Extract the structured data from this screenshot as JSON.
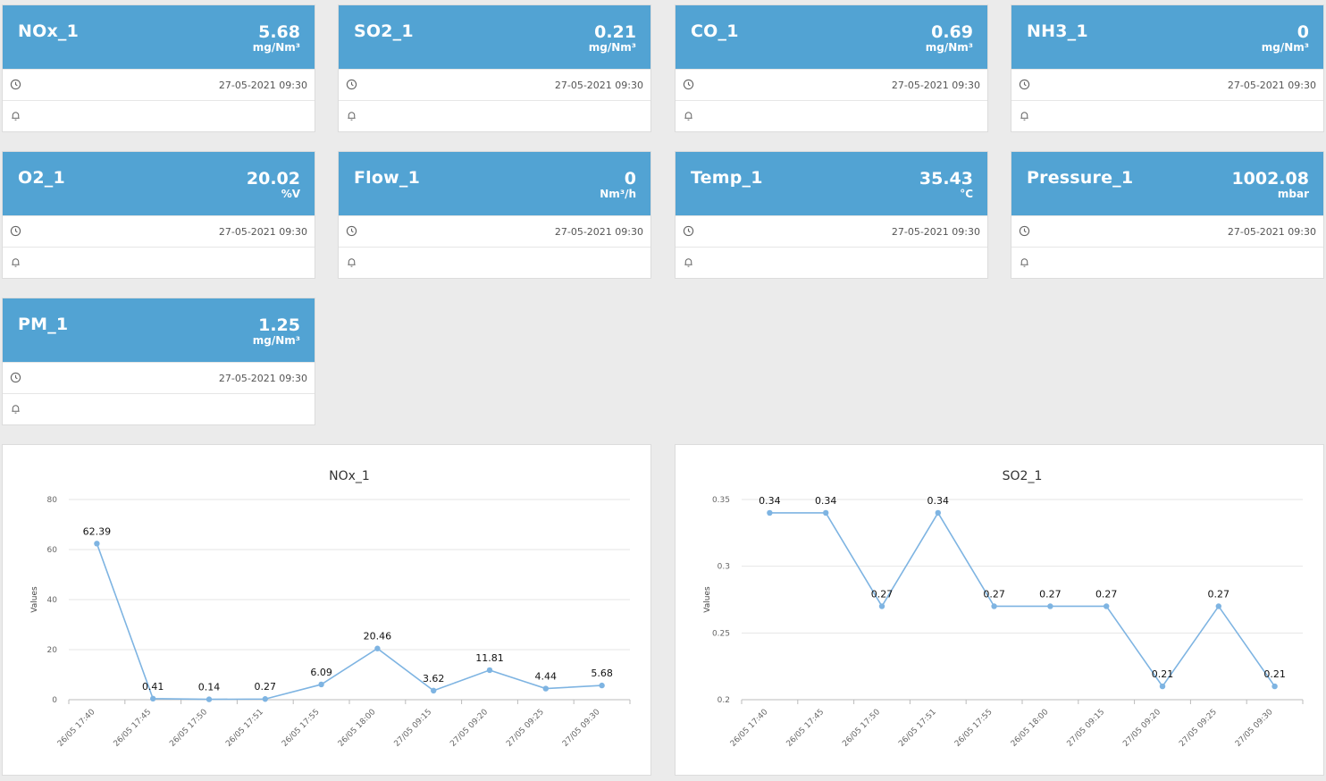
{
  "cards": [
    {
      "name": "NOx_1",
      "value": "5.68",
      "unit": "mg/Nm³",
      "timestamp": "27-05-2021 09:30"
    },
    {
      "name": "SO2_1",
      "value": "0.21",
      "unit": "mg/Nm³",
      "timestamp": "27-05-2021 09:30"
    },
    {
      "name": "CO_1",
      "value": "0.69",
      "unit": "mg/Nm³",
      "timestamp": "27-05-2021 09:30"
    },
    {
      "name": "NH3_1",
      "value": "0",
      "unit": "mg/Nm³",
      "timestamp": "27-05-2021 09:30"
    },
    {
      "name": "O2_1",
      "value": "20.02",
      "unit": "%V",
      "timestamp": "27-05-2021 09:30"
    },
    {
      "name": "Flow_1",
      "value": "0",
      "unit": "Nm³/h",
      "timestamp": "27-05-2021 09:30"
    },
    {
      "name": "Temp_1",
      "value": "35.43",
      "unit": "°C",
      "timestamp": "27-05-2021 09:30"
    },
    {
      "name": "Pressure_1",
      "value": "1002.08",
      "unit": "mbar",
      "timestamp": "27-05-2021 09:30"
    },
    {
      "name": "PM_1",
      "value": "1.25",
      "unit": "mg/Nm³",
      "timestamp": "27-05-2021 09:30"
    }
  ],
  "icons": {
    "time": "clock-icon",
    "alarm": "bell-icon"
  },
  "colors": {
    "accent": "#52a3d3",
    "line": "#7eb4e2",
    "background": "#ebebeb"
  },
  "chart_data": [
    {
      "type": "line",
      "title": "NOx_1",
      "ylabel": "Values",
      "ylim": [
        0,
        80
      ],
      "yticks": [
        "0",
        "20",
        "40",
        "60",
        "80"
      ],
      "categories": [
        "26/05 17:40",
        "26/05 17:45",
        "26/05 17:50",
        "26/05 17:51",
        "26/05 17:55",
        "26/05 18:00",
        "27/05 09:15",
        "27/05 09:20",
        "27/05 09:25",
        "27/05 09:30"
      ],
      "values": [
        62.39,
        0.41,
        0.14,
        0.27,
        6.09,
        20.46,
        3.62,
        11.81,
        4.44,
        5.68
      ],
      "labels": [
        "62.39",
        "0.41",
        "0.14",
        "0.27",
        "6.09",
        "20.46",
        "3.62",
        "11.81",
        "4.44",
        "5.68"
      ],
      "grid": true
    },
    {
      "type": "line",
      "title": "SO2_1",
      "ylabel": "Values",
      "ylim": [
        0.2,
        0.35
      ],
      "yticks": [
        "0.2",
        "0.25",
        "0.3",
        "0.35"
      ],
      "categories": [
        "26/05 17:40",
        "26/05 17:45",
        "26/05 17:50",
        "26/05 17:51",
        "26/05 17:55",
        "26/05 18:00",
        "27/05 09:15",
        "27/05 09:20",
        "27/05 09:25",
        "27/05 09:30"
      ],
      "values": [
        0.34,
        0.34,
        0.27,
        0.34,
        0.27,
        0.27,
        0.27,
        0.21,
        0.27,
        0.21
      ],
      "labels": [
        "0.34",
        "0.34",
        "0.27",
        "0.34",
        "0.27",
        "0.27",
        "0.27",
        "0.21",
        "0.27",
        "0.21"
      ],
      "grid": true
    }
  ]
}
